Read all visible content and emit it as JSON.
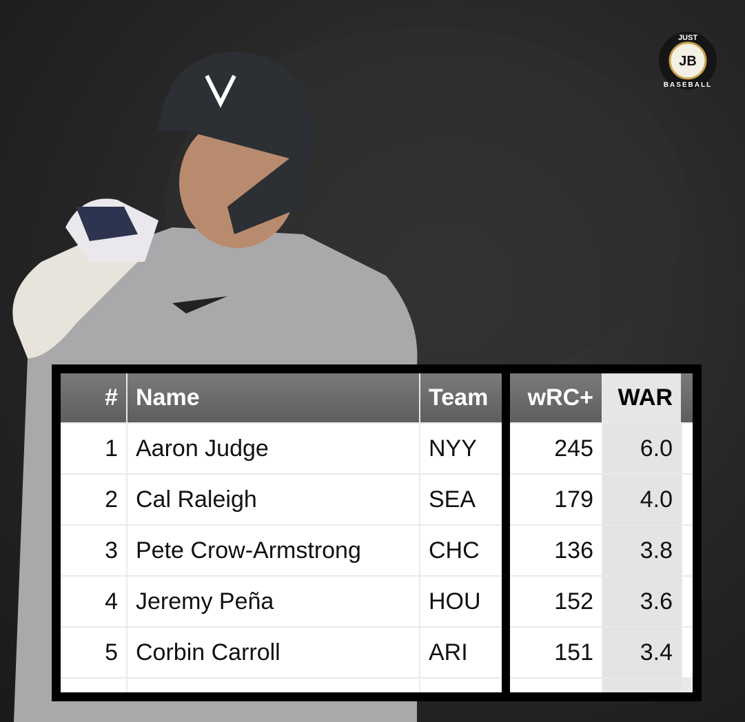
{
  "logo": {
    "top": "JUST",
    "center": "JB",
    "bottom": "BASEBALL"
  },
  "table": {
    "headers": [
      "#",
      "Name",
      "Team",
      "wRC+",
      "WAR"
    ],
    "rows": [
      [
        1,
        "Aaron Judge",
        "NYY",
        245,
        "6.0"
      ],
      [
        2,
        "Cal Raleigh",
        "SEA",
        179,
        "4.0"
      ],
      [
        3,
        "Pete Crow-Armstrong",
        "CHC",
        136,
        "3.8"
      ],
      [
        4,
        "Jeremy Peña",
        "HOU",
        152,
        "3.6"
      ],
      [
        5,
        "Corbin Carroll",
        "ARI",
        151,
        "3.4"
      ]
    ]
  }
}
